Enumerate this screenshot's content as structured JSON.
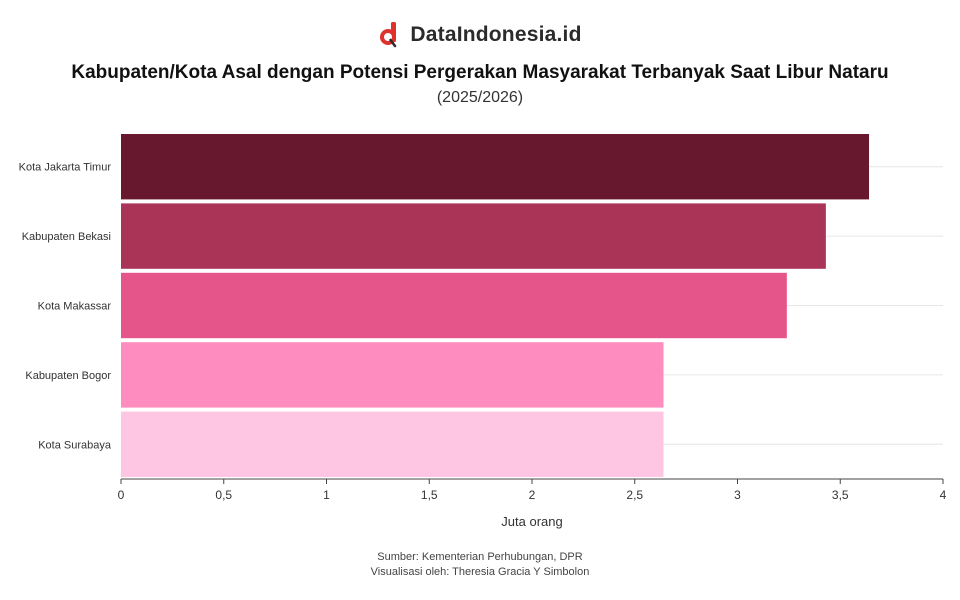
{
  "brand": {
    "name": "DataIndonesia.id",
    "icon": "dataindonesia-logo-icon",
    "accent": "#e0322d"
  },
  "chart_data": {
    "type": "bar",
    "orientation": "horizontal",
    "title": "Kabupaten/Kota Asal dengan Potensi Pergerakan Masyarakat Terbanyak Saat Libur Nataru",
    "subtitle": "(2025/2026)",
    "xlabel": "Juta orang",
    "ylabel": "",
    "categories": [
      "Kota Jakarta Timur",
      "Kabupaten Bekasi",
      "Kota Makassar",
      "Kabupaten Bogor",
      "Kota Surabaya"
    ],
    "values": [
      3.64,
      3.43,
      3.24,
      2.64,
      2.64
    ],
    "colors": [
      "#67182f",
      "#a93458",
      "#e5558a",
      "#ff8cbf",
      "#fec6e2"
    ],
    "xlim": [
      0,
      4
    ],
    "xticks": [
      "0",
      "0,5",
      "1",
      "1,5",
      "2",
      "2,5",
      "3",
      "3,5",
      "4"
    ],
    "xtick_values": [
      0,
      0.5,
      1,
      1.5,
      2,
      2.5,
      3,
      3.5,
      4
    ],
    "grid": true,
    "legend": "none"
  },
  "footer": {
    "source": "Sumber: Kementerian Perhubungan, DPR",
    "credit": "Visualisasi oleh: Theresia Gracia Y Simbolon"
  }
}
